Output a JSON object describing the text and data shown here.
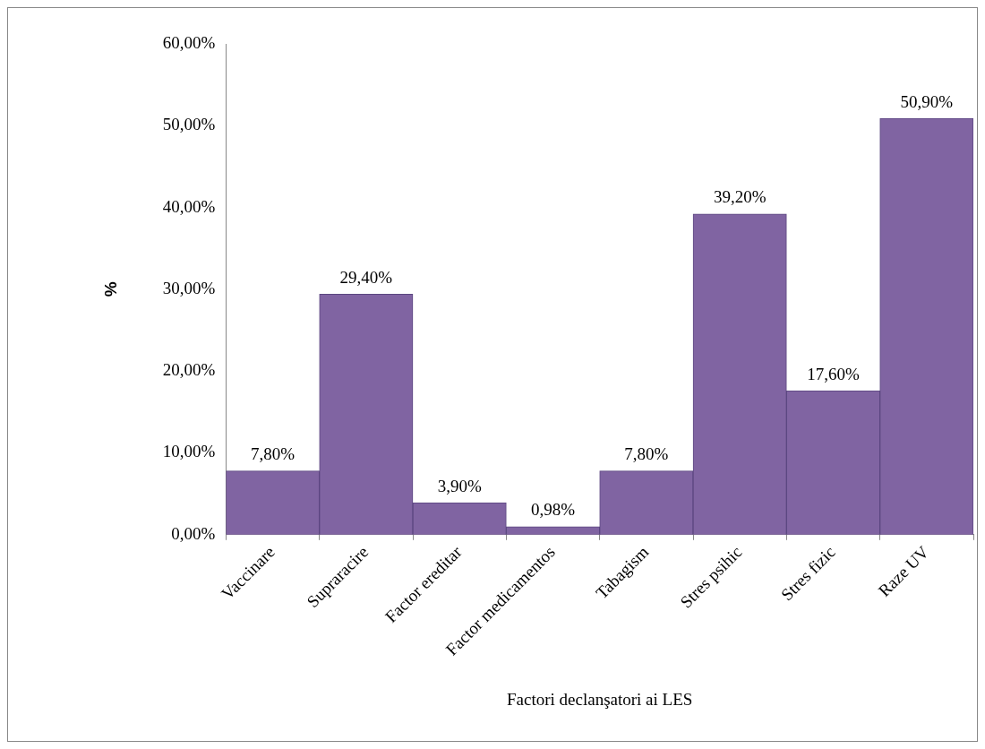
{
  "chart_data": {
    "type": "bar",
    "xlabel": "Factori declanşatori ai LES",
    "ylabel": "%",
    "categories": [
      "Vaccinare",
      "Supraracire",
      "Factor ereditar",
      "Factor medicamentos",
      "Tabagism",
      "Stres psihic",
      "Stres fizic",
      "Raze UV"
    ],
    "values": [
      7.8,
      29.4,
      3.9,
      0.98,
      7.8,
      39.2,
      17.6,
      50.9
    ],
    "value_labels": [
      "7,80%",
      "29,40%",
      "3,90%",
      "0,98%",
      "7,80%",
      "39,20%",
      "17,60%",
      "50,90%"
    ],
    "color": "#8064a2",
    "ylim": [
      0,
      60
    ],
    "yticks": [
      {
        "value": 0,
        "label": "0,00%"
      },
      {
        "value": 10,
        "label": "10,00%"
      },
      {
        "value": 20,
        "label": "20,00%"
      },
      {
        "value": 30,
        "label": "30,00%"
      },
      {
        "value": 40,
        "label": "40,00%"
      },
      {
        "value": 50,
        "label": "50,00%"
      },
      {
        "value": 60,
        "label": "60,00%"
      }
    ]
  }
}
